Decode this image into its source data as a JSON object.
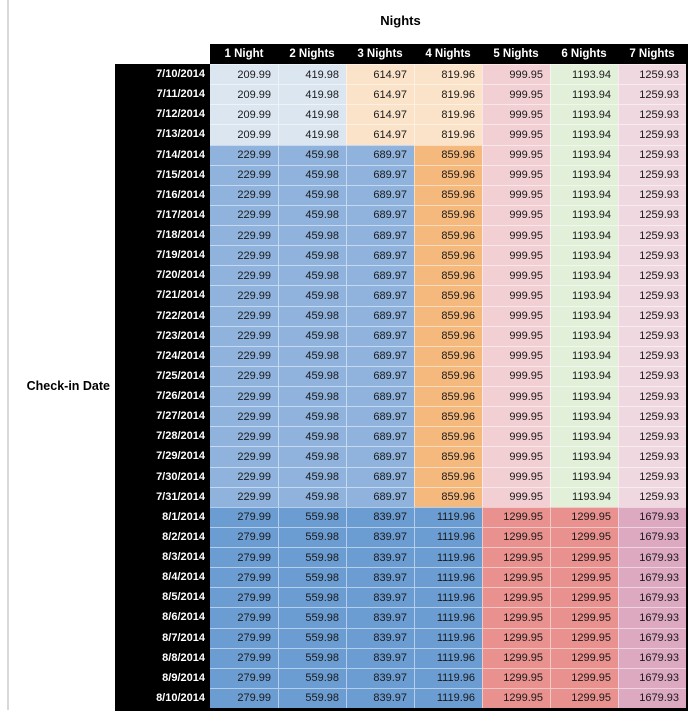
{
  "title": {
    "text": "Nights"
  },
  "row_axis_label": {
    "text": "Check-in Date"
  },
  "table": {
    "columns": [
      "1 Night",
      "2 Nights",
      "3 Nights",
      "4 Nights",
      "5 Nights",
      "6 Nights",
      "7 Nights"
    ],
    "rows": [
      {
        "date": "7/10/2014",
        "group": "early_july",
        "values": [
          "209.99",
          "419.98",
          "614.97",
          "819.96",
          "999.95",
          "1193.94",
          "1259.93"
        ]
      },
      {
        "date": "7/11/2014",
        "group": "early_july",
        "values": [
          "209.99",
          "419.98",
          "614.97",
          "819.96",
          "999.95",
          "1193.94",
          "1259.93"
        ]
      },
      {
        "date": "7/12/2014",
        "group": "early_july",
        "values": [
          "209.99",
          "419.98",
          "614.97",
          "819.96",
          "999.95",
          "1193.94",
          "1259.93"
        ]
      },
      {
        "date": "7/13/2014",
        "group": "early_july",
        "values": [
          "209.99",
          "419.98",
          "614.97",
          "819.96",
          "999.95",
          "1193.94",
          "1259.93"
        ]
      },
      {
        "date": "7/14/2014",
        "group": "mid_july",
        "values": [
          "229.99",
          "459.98",
          "689.97",
          "859.96",
          "999.95",
          "1193.94",
          "1259.93"
        ]
      },
      {
        "date": "7/15/2014",
        "group": "mid_july",
        "values": [
          "229.99",
          "459.98",
          "689.97",
          "859.96",
          "999.95",
          "1193.94",
          "1259.93"
        ]
      },
      {
        "date": "7/16/2014",
        "group": "mid_july",
        "values": [
          "229.99",
          "459.98",
          "689.97",
          "859.96",
          "999.95",
          "1193.94",
          "1259.93"
        ]
      },
      {
        "date": "7/17/2014",
        "group": "mid_july",
        "values": [
          "229.99",
          "459.98",
          "689.97",
          "859.96",
          "999.95",
          "1193.94",
          "1259.93"
        ]
      },
      {
        "date": "7/18/2014",
        "group": "mid_july",
        "values": [
          "229.99",
          "459.98",
          "689.97",
          "859.96",
          "999.95",
          "1193.94",
          "1259.93"
        ]
      },
      {
        "date": "7/19/2014",
        "group": "mid_july",
        "values": [
          "229.99",
          "459.98",
          "689.97",
          "859.96",
          "999.95",
          "1193.94",
          "1259.93"
        ]
      },
      {
        "date": "7/20/2014",
        "group": "mid_july",
        "values": [
          "229.99",
          "459.98",
          "689.97",
          "859.96",
          "999.95",
          "1193.94",
          "1259.93"
        ]
      },
      {
        "date": "7/21/2014",
        "group": "mid_july",
        "values": [
          "229.99",
          "459.98",
          "689.97",
          "859.96",
          "999.95",
          "1193.94",
          "1259.93"
        ]
      },
      {
        "date": "7/22/2014",
        "group": "mid_july",
        "values": [
          "229.99",
          "459.98",
          "689.97",
          "859.96",
          "999.95",
          "1193.94",
          "1259.93"
        ]
      },
      {
        "date": "7/23/2014",
        "group": "mid_july",
        "values": [
          "229.99",
          "459.98",
          "689.97",
          "859.96",
          "999.95",
          "1193.94",
          "1259.93"
        ]
      },
      {
        "date": "7/24/2014",
        "group": "mid_july",
        "values": [
          "229.99",
          "459.98",
          "689.97",
          "859.96",
          "999.95",
          "1193.94",
          "1259.93"
        ]
      },
      {
        "date": "7/25/2014",
        "group": "mid_july",
        "values": [
          "229.99",
          "459.98",
          "689.97",
          "859.96",
          "999.95",
          "1193.94",
          "1259.93"
        ]
      },
      {
        "date": "7/26/2014",
        "group": "mid_july",
        "values": [
          "229.99",
          "459.98",
          "689.97",
          "859.96",
          "999.95",
          "1193.94",
          "1259.93"
        ]
      },
      {
        "date": "7/27/2014",
        "group": "mid_july",
        "values": [
          "229.99",
          "459.98",
          "689.97",
          "859.96",
          "999.95",
          "1193.94",
          "1259.93"
        ]
      },
      {
        "date": "7/28/2014",
        "group": "mid_july",
        "values": [
          "229.99",
          "459.98",
          "689.97",
          "859.96",
          "999.95",
          "1193.94",
          "1259.93"
        ]
      },
      {
        "date": "7/29/2014",
        "group": "mid_july",
        "values": [
          "229.99",
          "459.98",
          "689.97",
          "859.96",
          "999.95",
          "1193.94",
          "1259.93"
        ]
      },
      {
        "date": "7/30/2014",
        "group": "mid_july",
        "values": [
          "229.99",
          "459.98",
          "689.97",
          "859.96",
          "999.95",
          "1193.94",
          "1259.93"
        ]
      },
      {
        "date": "7/31/2014",
        "group": "mid_july",
        "values": [
          "229.99",
          "459.98",
          "689.97",
          "859.96",
          "999.95",
          "1193.94",
          "1259.93"
        ]
      },
      {
        "date": "8/1/2014",
        "group": "august",
        "values": [
          "279.99",
          "559.98",
          "839.97",
          "1119.96",
          "1299.95",
          "1299.95",
          "1679.93"
        ]
      },
      {
        "date": "8/2/2014",
        "group": "august",
        "values": [
          "279.99",
          "559.98",
          "839.97",
          "1119.96",
          "1299.95",
          "1299.95",
          "1679.93"
        ]
      },
      {
        "date": "8/3/2014",
        "group": "august",
        "values": [
          "279.99",
          "559.98",
          "839.97",
          "1119.96",
          "1299.95",
          "1299.95",
          "1679.93"
        ]
      },
      {
        "date": "8/4/2014",
        "group": "august",
        "values": [
          "279.99",
          "559.98",
          "839.97",
          "1119.96",
          "1299.95",
          "1299.95",
          "1679.93"
        ]
      },
      {
        "date": "8/5/2014",
        "group": "august",
        "values": [
          "279.99",
          "559.98",
          "839.97",
          "1119.96",
          "1299.95",
          "1299.95",
          "1679.93"
        ]
      },
      {
        "date": "8/6/2014",
        "group": "august",
        "values": [
          "279.99",
          "559.98",
          "839.97",
          "1119.96",
          "1299.95",
          "1299.95",
          "1679.93"
        ]
      },
      {
        "date": "8/7/2014",
        "group": "august",
        "values": [
          "279.99",
          "559.98",
          "839.97",
          "1119.96",
          "1299.95",
          "1299.95",
          "1679.93"
        ]
      },
      {
        "date": "8/8/2014",
        "group": "august",
        "values": [
          "279.99",
          "559.98",
          "839.97",
          "1119.96",
          "1299.95",
          "1299.95",
          "1679.93"
        ]
      },
      {
        "date": "8/9/2014",
        "group": "august",
        "values": [
          "279.99",
          "559.98",
          "839.97",
          "1119.96",
          "1299.95",
          "1299.95",
          "1679.93"
        ]
      },
      {
        "date": "8/10/2014",
        "group": "august",
        "values": [
          "279.99",
          "559.98",
          "839.97",
          "1119.96",
          "1299.95",
          "1299.95",
          "1679.93"
        ]
      }
    ],
    "group_cell_colors": {
      "early_july": [
        "lightBlue",
        "lightBlue",
        "lightOrange",
        "lightOrange",
        "rose",
        "green",
        "pinkLavender"
      ],
      "mid_july": [
        "medBlue",
        "medBlue",
        "medBlue",
        "medOrange",
        "rose",
        "green",
        "pinkLavender"
      ],
      "august": [
        "augBlue",
        "augBlue",
        "augBlue",
        "augBlue",
        "salmon",
        "salmon",
        "mauve"
      ]
    },
    "palette": {
      "lightBlue": "#DCE6F1",
      "lightOrange": "#FBE3C9",
      "medBlue": "#8FB3DC",
      "medOrange": "#F5B97E",
      "rose": "#F2CFD3",
      "green": "#E2EFD9",
      "pinkLavender": "#EFD8E0",
      "augBlue": "#6B9DD2",
      "salmon": "#E9918E",
      "mauve": "#DCA9C1",
      "header_bg": "#000000",
      "header_text": "#FFFFFF",
      "cell_text": "#1A1A1A",
      "window_edge": "#D9D9D9"
    }
  }
}
